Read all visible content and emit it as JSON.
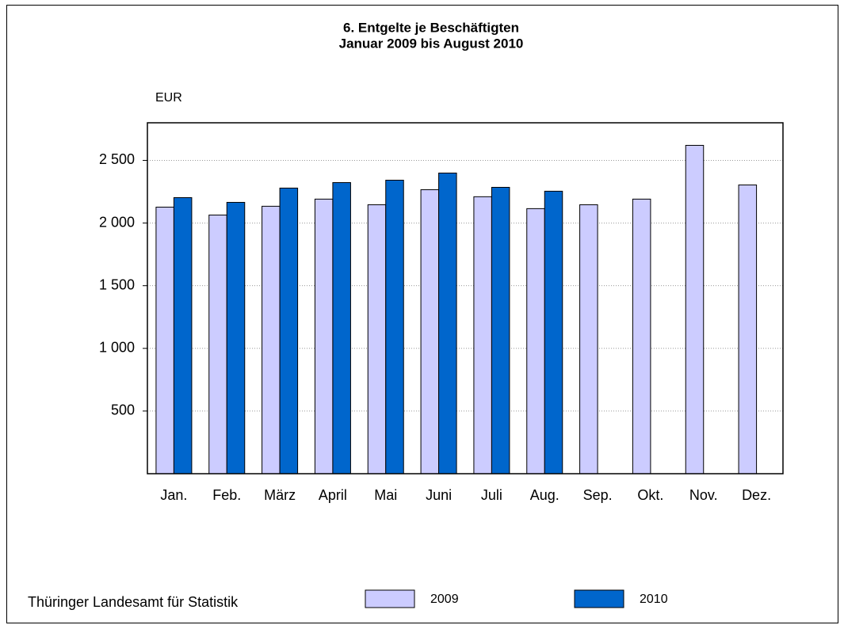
{
  "chart_data": {
    "type": "bar",
    "title": "6. Entgelte je Beschäftigten",
    "subtitle": "Januar 2009 bis August 2010",
    "y_label": "EUR",
    "source": "Thüringer Landesamt für Statistik",
    "categories": [
      "Jan.",
      "Feb.",
      "März",
      "April",
      "Mai",
      "Juni",
      "Juli",
      "Aug.",
      "Sep.",
      "Okt.",
      "Nov.",
      "Dez."
    ],
    "series": [
      {
        "name": "2009",
        "color": "#ccccff",
        "values": [
          2127,
          2064,
          2134,
          2191,
          2146,
          2266,
          2210,
          2115,
          2146,
          2191,
          2620,
          2304
        ]
      },
      {
        "name": "2010",
        "color": "#0066cc",
        "values": [
          2203,
          2165,
          2279,
          2323,
          2342,
          2399,
          2285,
          2254,
          null,
          null,
          null,
          null
        ]
      }
    ],
    "ylim": [
      0,
      2800
    ],
    "yticks": [
      500,
      {
        "value": 1000,
        "label": "1 000"
      },
      {
        "value": 1500,
        "label": "1 500"
      },
      {
        "value": 2000,
        "label": "2 000"
      },
      {
        "value": 2500,
        "label": "2 500"
      }
    ],
    "grid": true,
    "legend": "bottom"
  }
}
